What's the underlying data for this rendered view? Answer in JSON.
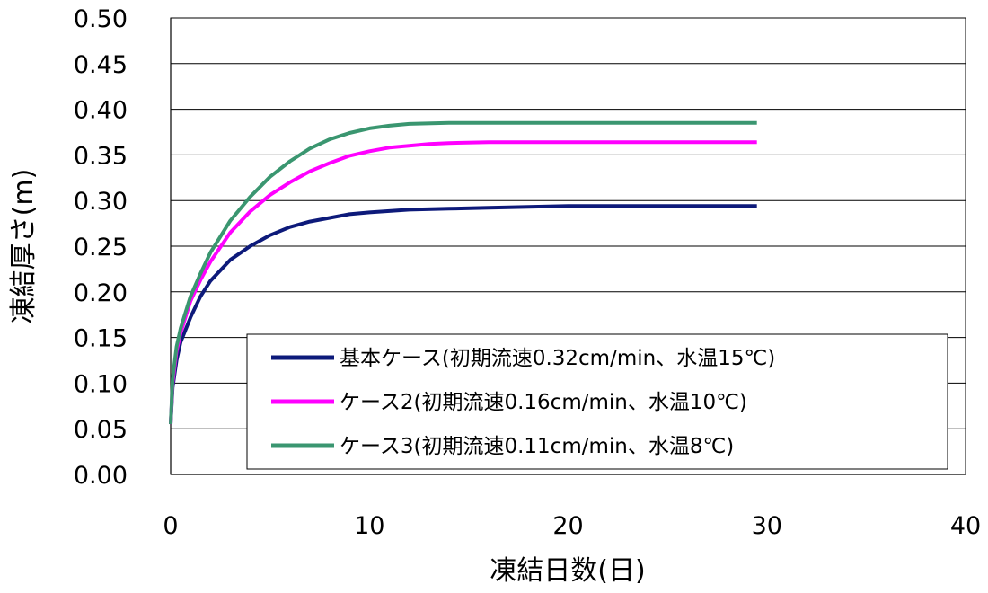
{
  "chart_data": {
    "type": "line",
    "xlabel": "凍結日数(日)",
    "ylabel": "凍結厚さ(m)",
    "xlim": [
      0,
      40
    ],
    "ylim": [
      0,
      0.5
    ],
    "x_ticks": [
      "0",
      "10",
      "20",
      "30",
      "40"
    ],
    "y_ticks": [
      "0.00",
      "0.05",
      "0.10",
      "0.15",
      "0.20",
      "0.25",
      "0.30",
      "0.35",
      "0.40",
      "0.45",
      "0.50"
    ],
    "grid": "horizontal",
    "legend_position": "bottom-right",
    "series": [
      {
        "name": "基本ケース(初期流速0.32cm/min、水温15℃)",
        "color": "#0d1a7a",
        "x": [
          0,
          0.1,
          0.3,
          0.5,
          1,
          1.5,
          2,
          3,
          4,
          5,
          6,
          7,
          8,
          9,
          10,
          12,
          14,
          16,
          18,
          20,
          22,
          24,
          26,
          28,
          29.5
        ],
        "y": [
          0.055,
          0.095,
          0.125,
          0.145,
          0.172,
          0.195,
          0.212,
          0.235,
          0.25,
          0.262,
          0.271,
          0.277,
          0.281,
          0.285,
          0.287,
          0.29,
          0.291,
          0.292,
          0.293,
          0.294,
          0.294,
          0.294,
          0.294,
          0.294,
          0.294
        ]
      },
      {
        "name": "ケース2(初期流速0.16cm/min、水温10℃)",
        "color": "#ff00ff",
        "x": [
          0,
          0.1,
          0.3,
          0.5,
          1,
          1.5,
          2,
          3,
          4,
          5,
          6,
          7,
          8,
          9,
          10,
          11,
          12,
          13,
          14,
          16,
          20,
          24,
          28,
          29.5
        ],
        "y": [
          0.055,
          0.1,
          0.135,
          0.155,
          0.19,
          0.213,
          0.233,
          0.265,
          0.288,
          0.306,
          0.32,
          0.332,
          0.341,
          0.349,
          0.354,
          0.358,
          0.36,
          0.362,
          0.363,
          0.364,
          0.364,
          0.364,
          0.364,
          0.364
        ]
      },
      {
        "name": "ケース3(初期流速0.11cm/min、水温8℃)",
        "color": "#3a9670",
        "x": [
          0,
          0.1,
          0.3,
          0.5,
          1,
          1.5,
          2,
          3,
          4,
          5,
          6,
          7,
          8,
          9,
          10,
          11,
          12,
          14,
          16,
          20,
          24,
          28,
          29.5
        ],
        "y": [
          0.055,
          0.105,
          0.14,
          0.16,
          0.195,
          0.22,
          0.243,
          0.278,
          0.304,
          0.326,
          0.343,
          0.357,
          0.367,
          0.374,
          0.379,
          0.382,
          0.384,
          0.385,
          0.385,
          0.385,
          0.385,
          0.385,
          0.385
        ]
      }
    ]
  }
}
